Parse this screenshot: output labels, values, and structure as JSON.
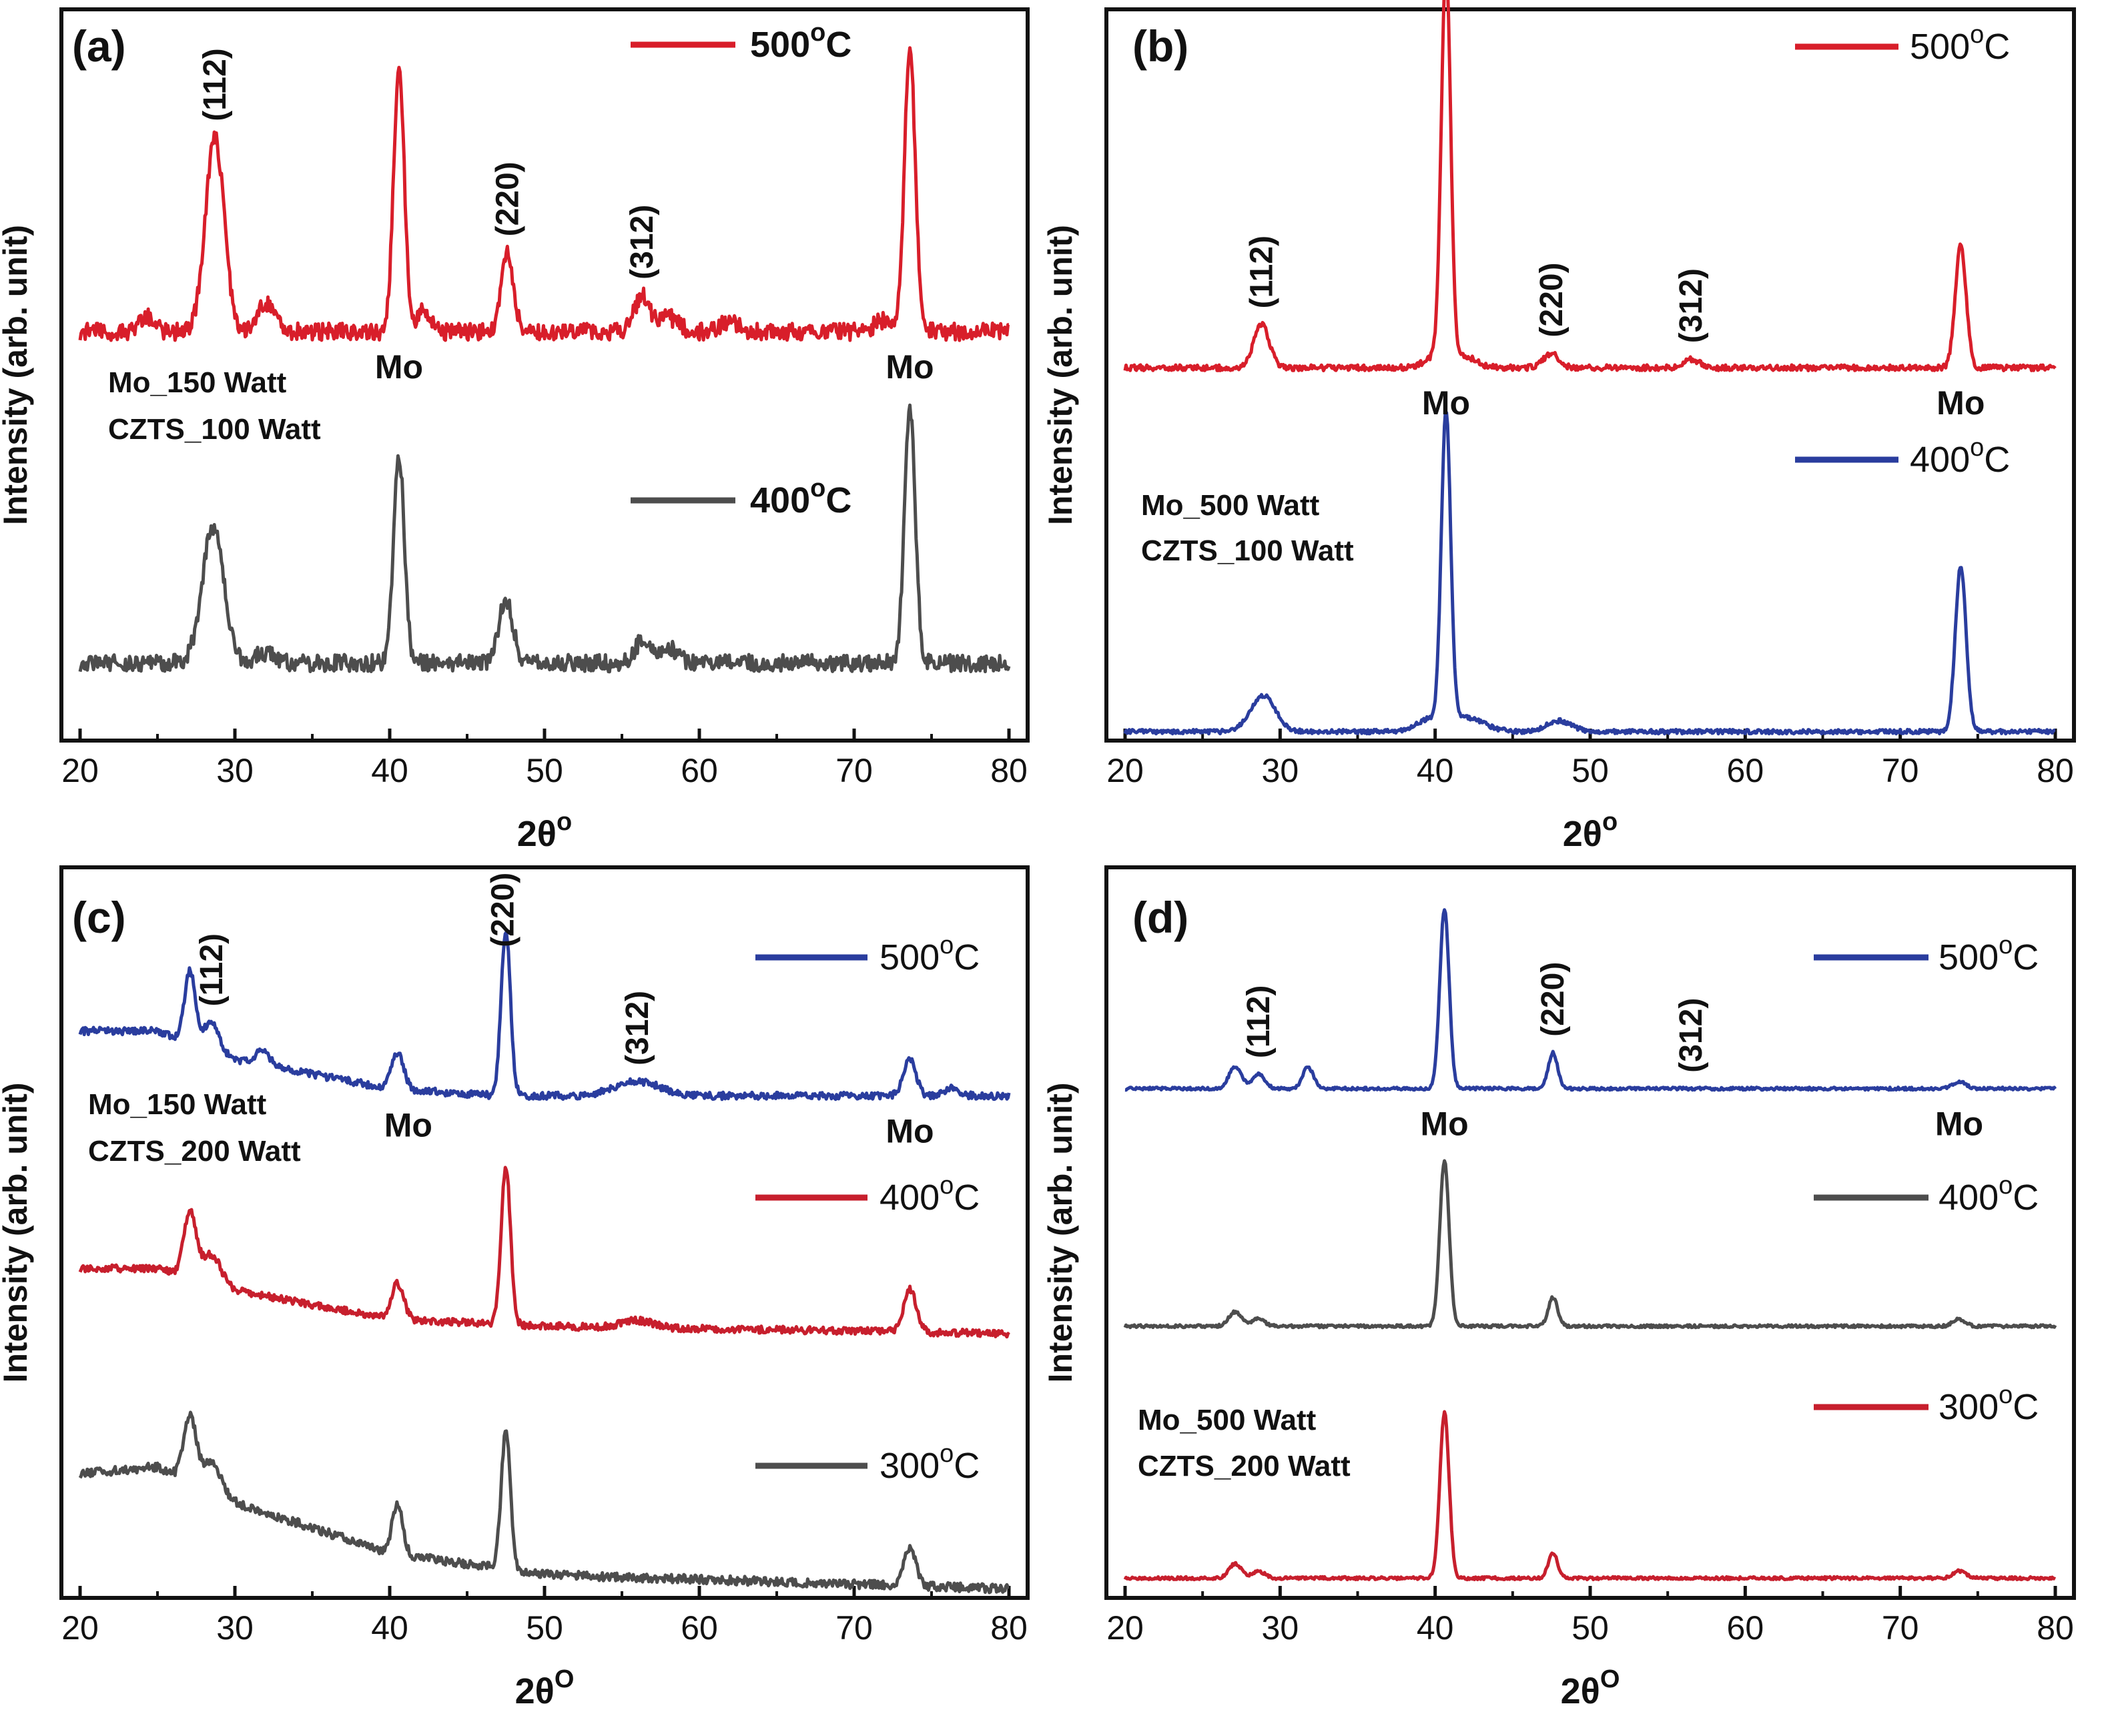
{
  "chart_data": [
    {
      "id": "a",
      "type": "line",
      "panel_label": "(a)",
      "xlabel": "2θ",
      "xlabel_sup": "o",
      "ylabel": "Intensity (arb. unit)",
      "xlim": [
        20,
        80
      ],
      "xticks": [
        "20",
        "30",
        "40",
        "50",
        "60",
        "70",
        "80"
      ],
      "legend_bold": true,
      "sample": [
        "Mo_150 Watt",
        "CZTS_100 Watt"
      ],
      "series": [
        {
          "name": "500",
          "unit": "C",
          "color": "#d81e2a",
          "baseline": 0.56,
          "noise": 0.012,
          "peaks": [
            [
              28.7,
              0.27,
              0.6
            ],
            [
              40.6,
              0.36,
              0.35
            ],
            [
              47.6,
              0.11,
              0.4
            ],
            [
              56.3,
              0.05,
              0.5
            ],
            [
              73.6,
              0.39,
              0.35
            ],
            [
              32,
              0.04,
              0.6
            ],
            [
              24.3,
              0.02,
              0.5
            ],
            [
              42.2,
              0.03,
              0.4
            ],
            [
              58,
              0.02,
              0.6
            ],
            [
              62,
              0.015,
              0.6
            ],
            [
              71.8,
              0.015,
              0.5
            ]
          ]
        },
        {
          "name": "400",
          "unit": "C",
          "color": "#4d4d4d",
          "baseline": 0.1,
          "noise": 0.012,
          "peaks": [
            [
              28.6,
              0.19,
              0.7
            ],
            [
              40.6,
              0.29,
              0.35
            ],
            [
              47.5,
              0.09,
              0.45
            ],
            [
              56.3,
              0.03,
              0.5
            ],
            [
              58,
              0.02,
              0.6
            ],
            [
              73.6,
              0.35,
              0.35
            ],
            [
              32,
              0.015,
              0.6
            ]
          ]
        }
      ],
      "annotations": [
        {
          "text": "(112)",
          "x": 28.7,
          "series": 0
        },
        {
          "text": "(220)",
          "x": 47.6,
          "series": 0
        },
        {
          "text": "(312)",
          "x": 56.3,
          "series": 0
        }
      ],
      "mo_labels": [
        {
          "text": "Mo",
          "x": 40.6
        },
        {
          "text": "Mo",
          "x": 73.6
        }
      ]
    },
    {
      "id": "b",
      "type": "line",
      "panel_label": "(b)",
      "xlabel": "2θ",
      "xlabel_sup": "o",
      "ylabel": "Intensity (arb. unit)",
      "xlim": [
        20,
        80
      ],
      "xticks": [
        "20",
        "30",
        "40",
        "50",
        "60",
        "70",
        "80"
      ],
      "legend_bold": false,
      "sample": [
        "Mo_500 Watt",
        "CZTS_100 Watt"
      ],
      "series": [
        {
          "name": "500",
          "unit": "C",
          "color": "#d81e2a",
          "baseline": 0.51,
          "noise": 0.004,
          "peaks": [
            [
              28.8,
              0.06,
              0.5
            ],
            [
              40.7,
              0.55,
              0.3
            ],
            [
              47.5,
              0.02,
              0.5
            ],
            [
              56.5,
              0.012,
              0.5
            ],
            [
              73.9,
              0.17,
              0.35
            ],
            [
              40,
              0.015,
              0.7
            ],
            [
              42,
              0.015,
              0.7
            ]
          ]
        },
        {
          "name": "400",
          "unit": "C",
          "color": "#2a3d9e",
          "baseline": 0.005,
          "noise": 0.003,
          "peaks": [
            [
              28.9,
              0.05,
              0.8
            ],
            [
              40.7,
              0.43,
              0.3
            ],
            [
              41.9,
              0.02,
              1.2
            ],
            [
              48,
              0.015,
              0.8
            ],
            [
              73.9,
              0.23,
              0.35
            ],
            [
              39.5,
              0.015,
              0.8
            ]
          ]
        }
      ],
      "annotations": [
        {
          "text": "(112)",
          "x": 28.8,
          "series": 0
        },
        {
          "text": "(220)",
          "x": 47.5,
          "series": 0
        },
        {
          "text": "(312)",
          "x": 56.5,
          "series": 0
        }
      ],
      "mo_labels": [
        {
          "text": "Mo",
          "x": 40.7
        },
        {
          "text": "Mo",
          "x": 73.9
        }
      ]
    },
    {
      "id": "c",
      "type": "line",
      "panel_label": "(c)",
      "xlabel": "2θ",
      "xlabel_sup": "O",
      "ylabel": "Intensity (arb. unit)",
      "xlim": [
        20,
        80
      ],
      "xticks": [
        "20",
        "30",
        "40",
        "50",
        "60",
        "70",
        "80"
      ],
      "legend_bold": false,
      "sample": [
        "Mo_150 Watt",
        "CZTS_200 Watt"
      ],
      "series": [
        {
          "name": "500",
          "unit": "C",
          "color": "#2a3d9e",
          "baseline": 0.69,
          "noise": 0.005,
          "slope": [
            [
              20,
              0.09
            ],
            [
              25,
              0.09
            ],
            [
              30,
              0.05
            ],
            [
              40,
              0.01
            ],
            [
              47,
              0.0
            ]
          ],
          "peaks": [
            [
              27.1,
              0.1,
              0.35
            ],
            [
              28.5,
              0.04,
              0.5
            ],
            [
              31.8,
              0.02,
              0.45
            ],
            [
              40.5,
              0.05,
              0.4
            ],
            [
              47.5,
              0.23,
              0.3
            ],
            [
              56,
              0.02,
              1.5
            ],
            [
              73.6,
              0.05,
              0.4
            ],
            [
              76.2,
              0.01,
              0.5
            ]
          ]
        },
        {
          "name": "400",
          "unit": "C",
          "color": "#c71f2d",
          "baseline": 0.36,
          "noise": 0.005,
          "slope": [
            [
              20,
              0.09
            ],
            [
              25,
              0.09
            ],
            [
              30,
              0.06
            ],
            [
              40,
              0.02
            ],
            [
              50,
              0.01
            ],
            [
              80,
              0.0
            ]
          ],
          "peaks": [
            [
              27.1,
              0.09,
              0.4
            ],
            [
              28.5,
              0.04,
              0.6
            ],
            [
              40.5,
              0.05,
              0.4
            ],
            [
              47.5,
              0.22,
              0.3
            ],
            [
              56,
              0.01,
              1.0
            ],
            [
              73.6,
              0.06,
              0.4
            ]
          ]
        },
        {
          "name": "300",
          "unit": "C",
          "color": "#4d4d4d",
          "baseline": 0.005,
          "noise": 0.006,
          "slope": [
            [
              20,
              0.16
            ],
            [
              25,
              0.17
            ],
            [
              30,
              0.12
            ],
            [
              40,
              0.05
            ],
            [
              50,
              0.02
            ],
            [
              80,
              0.0
            ]
          ],
          "peaks": [
            [
              27.1,
              0.09,
              0.4
            ],
            [
              28.5,
              0.04,
              0.6
            ],
            [
              40.5,
              0.07,
              0.35
            ],
            [
              47.5,
              0.19,
              0.3
            ],
            [
              73.6,
              0.05,
              0.4
            ]
          ]
        }
      ],
      "annotations": [
        {
          "text": "(112)",
          "x": 28.5,
          "series": 0
        },
        {
          "text": "(220)",
          "x": 47.3,
          "series": 0
        },
        {
          "text": "(312)",
          "x": 56,
          "series": 0
        }
      ],
      "mo_labels": [
        {
          "text": "Mo",
          "x": 41.2
        },
        {
          "text": "Mo",
          "x": 73.6
        }
      ]
    },
    {
      "id": "d",
      "type": "line",
      "panel_label": "(d)",
      "xlabel": "2θ",
      "xlabel_sup": "O",
      "ylabel": "Intensity (arb. unit)",
      "xlim": [
        20,
        80
      ],
      "xticks": [
        "20",
        "30",
        "40",
        "50",
        "60",
        "70",
        "80"
      ],
      "legend_bold": false,
      "sample": [
        "Mo_500 Watt",
        "CZTS_200 Watt"
      ],
      "series": [
        {
          "name": "500",
          "unit": "C",
          "color": "#2a3d9e",
          "baseline": 0.7,
          "noise": 0.002,
          "peaks": [
            [
              27.1,
              0.03,
              0.4
            ],
            [
              28.6,
              0.02,
              0.4
            ],
            [
              31.8,
              0.03,
              0.35
            ],
            [
              40.6,
              0.25,
              0.3
            ],
            [
              47.6,
              0.05,
              0.3
            ],
            [
              73.8,
              0.01,
              0.4
            ]
          ]
        },
        {
          "name": "400",
          "unit": "C",
          "color": "#4d4d4d",
          "baseline": 0.37,
          "noise": 0.002,
          "peaks": [
            [
              27.1,
              0.02,
              0.4
            ],
            [
              28.6,
              0.01,
              0.4
            ],
            [
              40.6,
              0.23,
              0.3
            ],
            [
              47.6,
              0.04,
              0.3
            ],
            [
              73.8,
              0.01,
              0.4
            ]
          ]
        },
        {
          "name": "300",
          "unit": "C",
          "color": "#c71f2d",
          "baseline": 0.02,
          "noise": 0.002,
          "peaks": [
            [
              27.1,
              0.02,
              0.4
            ],
            [
              28.6,
              0.01,
              0.4
            ],
            [
              40.6,
              0.23,
              0.3
            ],
            [
              47.6,
              0.035,
              0.3
            ],
            [
              73.8,
              0.01,
              0.4
            ]
          ]
        }
      ],
      "annotations": [
        {
          "text": "(112)",
          "x": 28.6,
          "series": 0
        },
        {
          "text": "(220)",
          "x": 47.6,
          "series": 0
        },
        {
          "text": "(312)",
          "x": 56.5,
          "series": 0
        }
      ],
      "mo_labels": [
        {
          "text": "Mo",
          "x": 40.6
        },
        {
          "text": "Mo",
          "x": 73.8
        }
      ]
    }
  ]
}
